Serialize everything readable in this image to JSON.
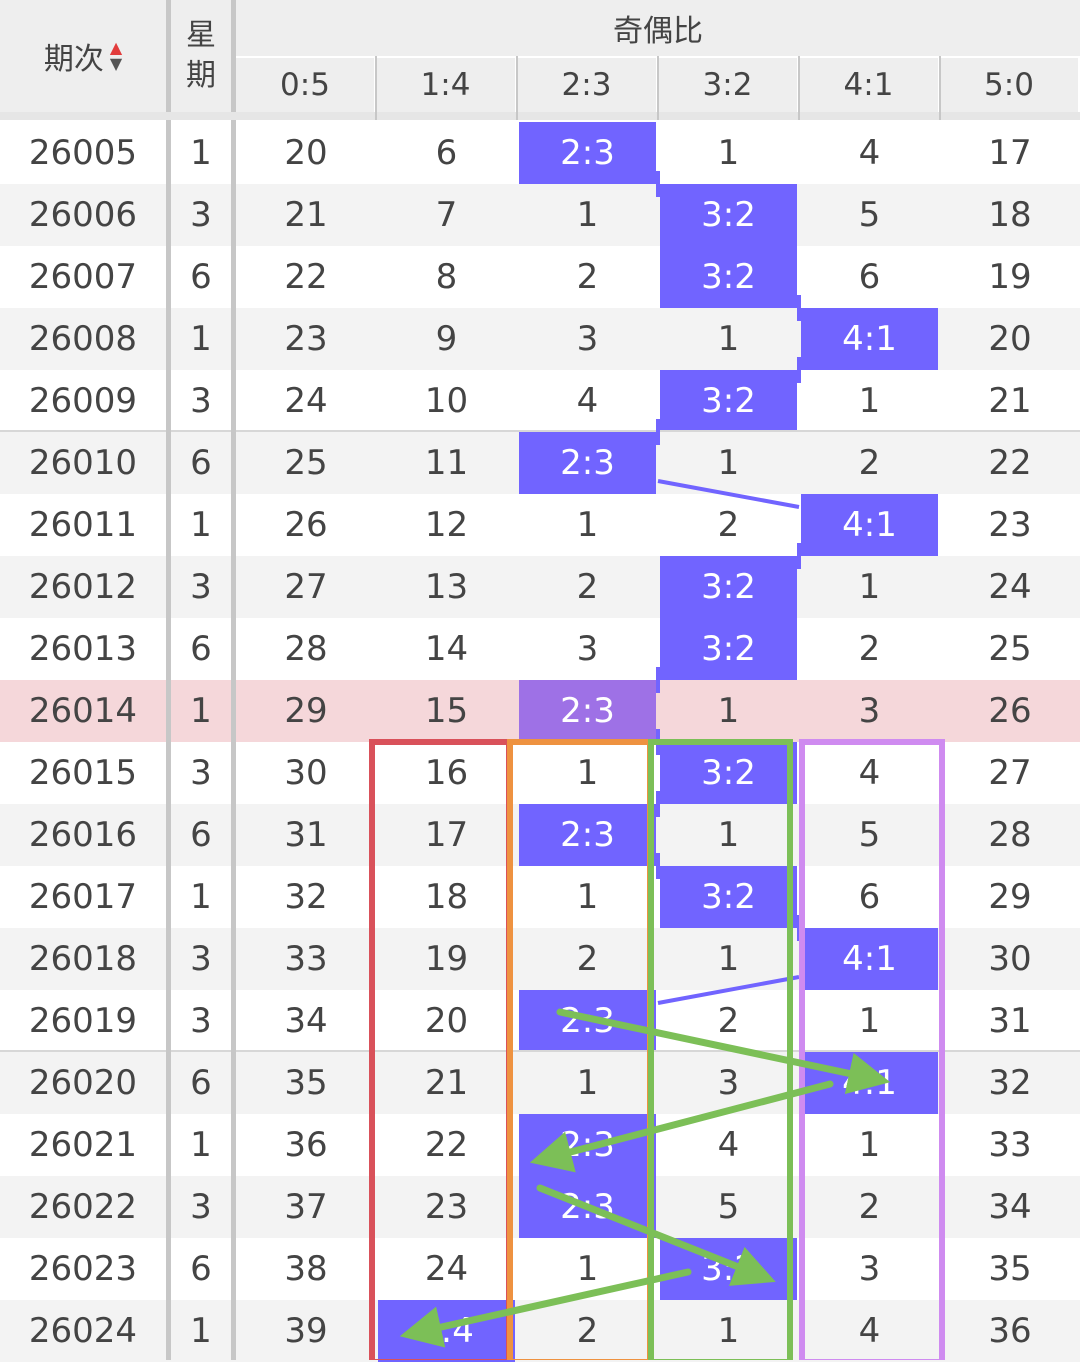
{
  "header": {
    "period_label": "期次",
    "weekday_label_line1": "星",
    "weekday_label_line2": "期",
    "group_label": "奇偶比",
    "sort_up_glyph": "▲",
    "sort_down_glyph": "▼",
    "columns": [
      "0:5",
      "1:4",
      "2:3",
      "3:2",
      "4:1",
      "5:0"
    ]
  },
  "colors": {
    "hit": "#7164ff",
    "hit_highlight_row": "#9e71e6",
    "highlight_row": "#f5d7da",
    "box_red": "#d9515a",
    "box_orange": "#ee9240",
    "box_green": "#7cbf57",
    "box_purple": "#cf8bf0",
    "arrow_green": "#7cbf57"
  },
  "highlight_row_period": "26014",
  "rows": [
    {
      "period": "26005",
      "weekday": "1",
      "cells": [
        "20",
        "6",
        "2:3",
        "1",
        "4",
        "17"
      ],
      "hit": 2
    },
    {
      "period": "26006",
      "weekday": "3",
      "cells": [
        "21",
        "7",
        "1",
        "3:2",
        "5",
        "18"
      ],
      "hit": 3
    },
    {
      "period": "26007",
      "weekday": "6",
      "cells": [
        "22",
        "8",
        "2",
        "3:2",
        "6",
        "19"
      ],
      "hit": 3
    },
    {
      "period": "26008",
      "weekday": "1",
      "cells": [
        "23",
        "9",
        "3",
        "1",
        "4:1",
        "20"
      ],
      "hit": 4
    },
    {
      "period": "26009",
      "weekday": "3",
      "cells": [
        "24",
        "10",
        "4",
        "3:2",
        "1",
        "21"
      ],
      "hit": 3
    },
    {
      "period": "26010",
      "weekday": "6",
      "cells": [
        "25",
        "11",
        "2:3",
        "1",
        "2",
        "22"
      ],
      "hit": 2
    },
    {
      "period": "26011",
      "weekday": "1",
      "cells": [
        "26",
        "12",
        "1",
        "2",
        "4:1",
        "23"
      ],
      "hit": 4
    },
    {
      "period": "26012",
      "weekday": "3",
      "cells": [
        "27",
        "13",
        "2",
        "3:2",
        "1",
        "24"
      ],
      "hit": 3
    },
    {
      "period": "26013",
      "weekday": "6",
      "cells": [
        "28",
        "14",
        "3",
        "3:2",
        "2",
        "25"
      ],
      "hit": 3
    },
    {
      "period": "26014",
      "weekday": "1",
      "cells": [
        "29",
        "15",
        "2:3",
        "1",
        "3",
        "26"
      ],
      "hit": 2
    },
    {
      "period": "26015",
      "weekday": "3",
      "cells": [
        "30",
        "16",
        "1",
        "3:2",
        "4",
        "27"
      ],
      "hit": 3
    },
    {
      "period": "26016",
      "weekday": "6",
      "cells": [
        "31",
        "17",
        "2:3",
        "1",
        "5",
        "28"
      ],
      "hit": 2
    },
    {
      "period": "26017",
      "weekday": "1",
      "cells": [
        "32",
        "18",
        "1",
        "3:2",
        "6",
        "29"
      ],
      "hit": 3
    },
    {
      "period": "26018",
      "weekday": "3",
      "cells": [
        "33",
        "19",
        "2",
        "1",
        "4:1",
        "30"
      ],
      "hit": 4
    },
    {
      "period": "26019",
      "weekday": "3",
      "cells": [
        "34",
        "20",
        "2:3",
        "2",
        "1",
        "31"
      ],
      "hit": 2
    },
    {
      "period": "26020",
      "weekday": "6",
      "cells": [
        "35",
        "21",
        "1",
        "3",
        "4:1",
        "32"
      ],
      "hit": 4
    },
    {
      "period": "26021",
      "weekday": "1",
      "cells": [
        "36",
        "22",
        "2:3",
        "4",
        "1",
        "33"
      ],
      "hit": 2
    },
    {
      "period": "26022",
      "weekday": "3",
      "cells": [
        "37",
        "23",
        "2:3",
        "5",
        "2",
        "34"
      ],
      "hit": 2
    },
    {
      "period": "26023",
      "weekday": "6",
      "cells": [
        "38",
        "24",
        "1",
        "3:2",
        "3",
        "35"
      ],
      "hit": 3
    },
    {
      "period": "26024",
      "weekday": "1",
      "cells": [
        "39",
        "1:4",
        "2",
        "1",
        "4",
        "36"
      ],
      "hit": 1
    }
  ]
}
